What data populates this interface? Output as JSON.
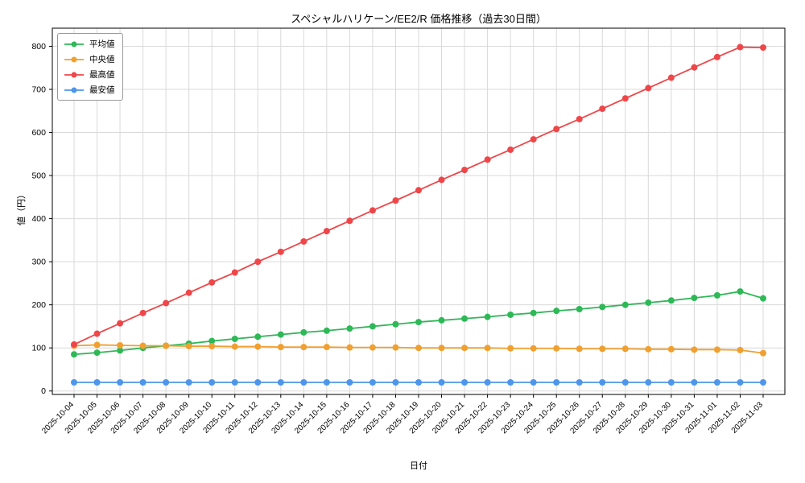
{
  "figure": {
    "title": "スペシャルハリケーン/EE2/R 価格推移（過去30日間）",
    "xlabel": "日付",
    "ylabel": "値（円）"
  },
  "chart_data": {
    "type": "line",
    "title": "スペシャルハリケーン/EE2/R 価格推移（過去30日間）",
    "xlabel": "日付",
    "ylabel": "値（円）",
    "ylim": [
      0,
      800
    ],
    "yticks": [
      0,
      100,
      200,
      300,
      400,
      500,
      600,
      700,
      800
    ],
    "grid": true,
    "legend_position": "upper left",
    "categories": [
      "2025-10-04",
      "2025-10-05",
      "2025-10-06",
      "2025-10-07",
      "2025-10-08",
      "2025-10-09",
      "2025-10-10",
      "2025-10-11",
      "2025-10-12",
      "2025-10-13",
      "2025-10-14",
      "2025-10-15",
      "2025-10-16",
      "2025-10-17",
      "2025-10-18",
      "2025-10-19",
      "2025-10-20",
      "2025-10-21",
      "2025-10-22",
      "2025-10-23",
      "2025-10-24",
      "2025-10-25",
      "2025-10-26",
      "2025-10-27",
      "2025-10-28",
      "2025-10-29",
      "2025-10-30",
      "2025-10-31",
      "2025-11-01",
      "2025-11-02",
      "2025-11-03"
    ],
    "series": [
      {
        "name": "平均値",
        "color": "#2eb857",
        "values": [
          85,
          89,
          94,
          100,
          105,
          110,
          116,
          121,
          126,
          131,
          136,
          140,
          145,
          150,
          155,
          160,
          164,
          168,
          172,
          177,
          181,
          186,
          190,
          195,
          200,
          205,
          210,
          216,
          222,
          231,
          215
        ]
      },
      {
        "name": "中央値",
        "color": "#f0a030",
        "values": [
          105,
          107,
          106,
          105,
          105,
          104,
          104,
          103,
          103,
          102,
          102,
          102,
          101,
          101,
          101,
          100,
          100,
          100,
          100,
          99,
          99,
          99,
          98,
          98,
          98,
          97,
          97,
          96,
          96,
          95,
          88
        ]
      },
      {
        "name": "最高値",
        "color": "#ef4649",
        "values": [
          108,
          133,
          157,
          181,
          204,
          228,
          252,
          275,
          300,
          323,
          347,
          371,
          395,
          419,
          442,
          466,
          490,
          513,
          537,
          560,
          584,
          608,
          631,
          655,
          679,
          703,
          727,
          751,
          775,
          798,
          797
        ]
      },
      {
        "name": "最安値",
        "color": "#4d96ea",
        "values": [
          20,
          20,
          20,
          20,
          20,
          20,
          20,
          20,
          20,
          20,
          20,
          20,
          20,
          20,
          20,
          20,
          20,
          20,
          20,
          20,
          20,
          20,
          20,
          20,
          20,
          20,
          20,
          20,
          20,
          20,
          20
        ]
      }
    ]
  }
}
